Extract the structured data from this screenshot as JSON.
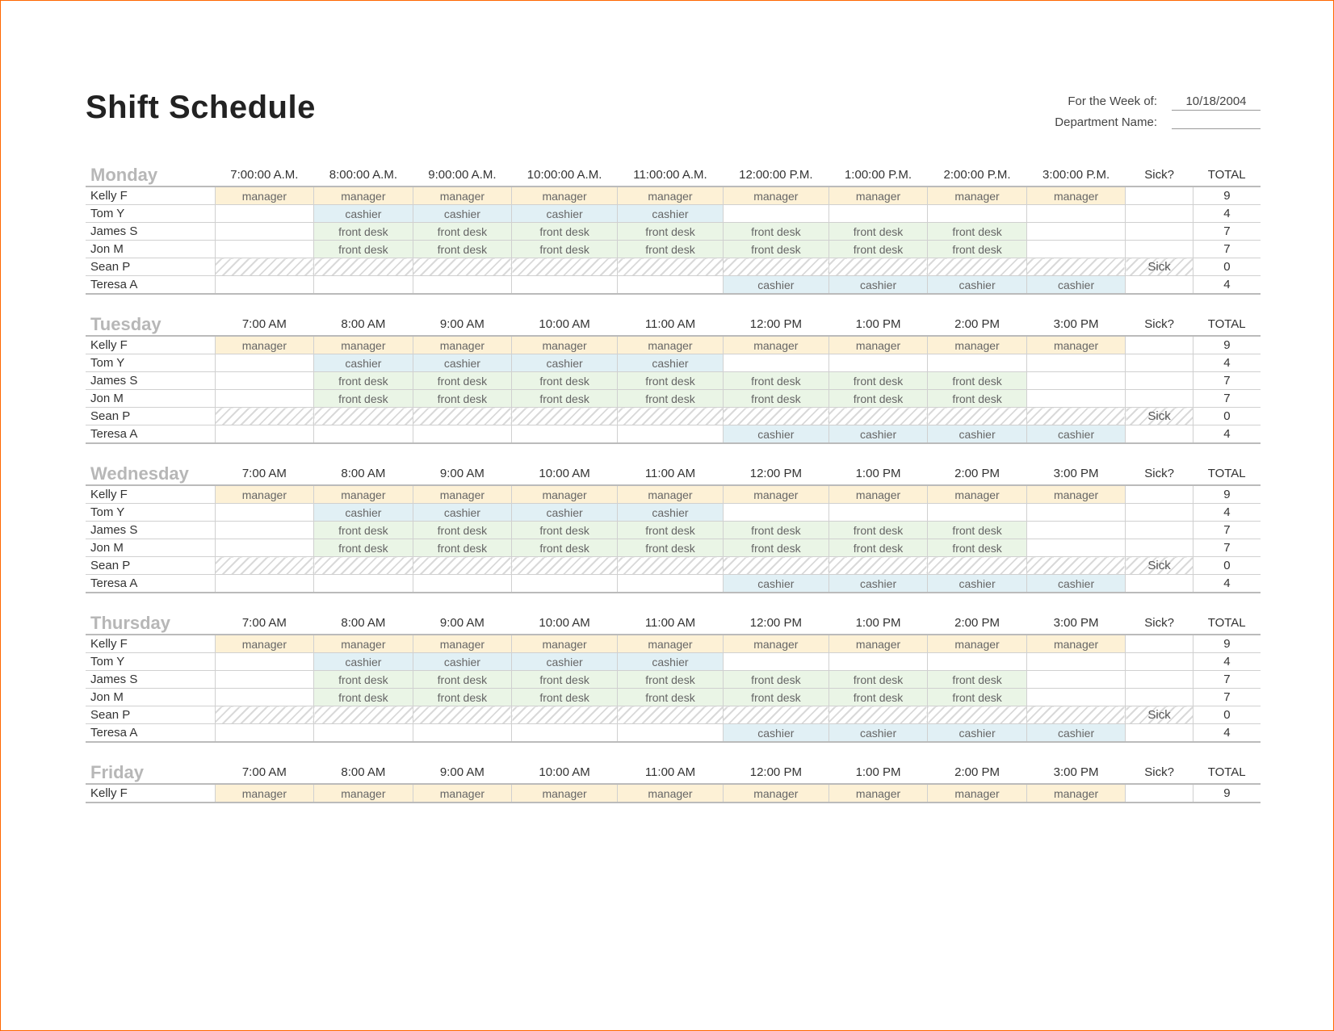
{
  "title": "Shift Schedule",
  "week_of_label": "For the Week of:",
  "week_of_value": "10/18/2004",
  "dept_label": "Department Name:",
  "dept_value": "",
  "roles": {
    "manager": {
      "label": "manager",
      "cls": "role-manager"
    },
    "cashier": {
      "label": "cashier",
      "cls": "role-cashier"
    },
    "frontdesk": {
      "label": "front desk",
      "cls": "role-frontdesk"
    }
  },
  "sick_header": "Sick?",
  "total_header": "TOTAL",
  "sick_label": "Sick",
  "days": [
    {
      "name": "Monday",
      "times": [
        "7:00:00 A.M.",
        "8:00:00 A.M.",
        "9:00:00 A.M.",
        "10:00:00 A.M.",
        "11:00:00 A.M.",
        "12:00:00 P.M.",
        "1:00:00 P.M.",
        "2:00:00 P.M.",
        "3:00:00 P.M."
      ],
      "rows": [
        {
          "name": "Kelly F",
          "cells": [
            "manager",
            "manager",
            "manager",
            "manager",
            "manager",
            "manager",
            "manager",
            "manager",
            "manager"
          ],
          "sick": "",
          "total": "9"
        },
        {
          "name": "Tom Y",
          "cells": [
            "",
            "cashier",
            "cashier",
            "cashier",
            "cashier",
            "",
            "",
            "",
            ""
          ],
          "sick": "",
          "total": "4"
        },
        {
          "name": "James S",
          "cells": [
            "",
            "frontdesk",
            "frontdesk",
            "frontdesk",
            "frontdesk",
            "frontdesk",
            "frontdesk",
            "frontdesk",
            ""
          ],
          "sick": "",
          "total": "7"
        },
        {
          "name": "Jon M",
          "cells": [
            "",
            "frontdesk",
            "frontdesk",
            "frontdesk",
            "frontdesk",
            "frontdesk",
            "frontdesk",
            "frontdesk",
            ""
          ],
          "sick": "",
          "total": "7"
        },
        {
          "name": "Sean P",
          "cells": [
            null,
            null,
            null,
            null,
            null,
            null,
            null,
            null,
            null
          ],
          "sick": "Sick",
          "total": "0"
        },
        {
          "name": "Teresa A",
          "cells": [
            "",
            "",
            "",
            "",
            "",
            "cashier",
            "cashier",
            "cashier",
            "cashier"
          ],
          "sick": "",
          "total": "4"
        }
      ]
    },
    {
      "name": "Tuesday",
      "times": [
        "7:00 AM",
        "8:00 AM",
        "9:00 AM",
        "10:00 AM",
        "11:00 AM",
        "12:00 PM",
        "1:00 PM",
        "2:00 PM",
        "3:00 PM"
      ],
      "rows": [
        {
          "name": "Kelly F",
          "cells": [
            "manager",
            "manager",
            "manager",
            "manager",
            "manager",
            "manager",
            "manager",
            "manager",
            "manager"
          ],
          "sick": "",
          "total": "9"
        },
        {
          "name": "Tom Y",
          "cells": [
            "",
            "cashier",
            "cashier",
            "cashier",
            "cashier",
            "",
            "",
            "",
            ""
          ],
          "sick": "",
          "total": "4"
        },
        {
          "name": "James S",
          "cells": [
            "",
            "frontdesk",
            "frontdesk",
            "frontdesk",
            "frontdesk",
            "frontdesk",
            "frontdesk",
            "frontdesk",
            ""
          ],
          "sick": "",
          "total": "7"
        },
        {
          "name": "Jon M",
          "cells": [
            "",
            "frontdesk",
            "frontdesk",
            "frontdesk",
            "frontdesk",
            "frontdesk",
            "frontdesk",
            "frontdesk",
            ""
          ],
          "sick": "",
          "total": "7"
        },
        {
          "name": "Sean P",
          "cells": [
            null,
            null,
            null,
            null,
            null,
            null,
            null,
            null,
            null
          ],
          "sick": "Sick",
          "total": "0"
        },
        {
          "name": "Teresa A",
          "cells": [
            "",
            "",
            "",
            "",
            "",
            "cashier",
            "cashier",
            "cashier",
            "cashier"
          ],
          "sick": "",
          "total": "4"
        }
      ]
    },
    {
      "name": "Wednesday",
      "times": [
        "7:00 AM",
        "8:00 AM",
        "9:00 AM",
        "10:00 AM",
        "11:00 AM",
        "12:00 PM",
        "1:00 PM",
        "2:00 PM",
        "3:00 PM"
      ],
      "rows": [
        {
          "name": "Kelly F",
          "cells": [
            "manager",
            "manager",
            "manager",
            "manager",
            "manager",
            "manager",
            "manager",
            "manager",
            "manager"
          ],
          "sick": "",
          "total": "9"
        },
        {
          "name": "Tom Y",
          "cells": [
            "",
            "cashier",
            "cashier",
            "cashier",
            "cashier",
            "",
            "",
            "",
            ""
          ],
          "sick": "",
          "total": "4"
        },
        {
          "name": "James S",
          "cells": [
            "",
            "frontdesk",
            "frontdesk",
            "frontdesk",
            "frontdesk",
            "frontdesk",
            "frontdesk",
            "frontdesk",
            ""
          ],
          "sick": "",
          "total": "7"
        },
        {
          "name": "Jon M",
          "cells": [
            "",
            "frontdesk",
            "frontdesk",
            "frontdesk",
            "frontdesk",
            "frontdesk",
            "frontdesk",
            "frontdesk",
            ""
          ],
          "sick": "",
          "total": "7"
        },
        {
          "name": "Sean P",
          "cells": [
            null,
            null,
            null,
            null,
            null,
            null,
            null,
            null,
            null
          ],
          "sick": "Sick",
          "total": "0"
        },
        {
          "name": "Teresa A",
          "cells": [
            "",
            "",
            "",
            "",
            "",
            "cashier",
            "cashier",
            "cashier",
            "cashier"
          ],
          "sick": "",
          "total": "4"
        }
      ]
    },
    {
      "name": "Thursday",
      "times": [
        "7:00 AM",
        "8:00 AM",
        "9:00 AM",
        "10:00 AM",
        "11:00 AM",
        "12:00 PM",
        "1:00 PM",
        "2:00 PM",
        "3:00 PM"
      ],
      "rows": [
        {
          "name": "Kelly F",
          "cells": [
            "manager",
            "manager",
            "manager",
            "manager",
            "manager",
            "manager",
            "manager",
            "manager",
            "manager"
          ],
          "sick": "",
          "total": "9"
        },
        {
          "name": "Tom Y",
          "cells": [
            "",
            "cashier",
            "cashier",
            "cashier",
            "cashier",
            "",
            "",
            "",
            ""
          ],
          "sick": "",
          "total": "4"
        },
        {
          "name": "James S",
          "cells": [
            "",
            "frontdesk",
            "frontdesk",
            "frontdesk",
            "frontdesk",
            "frontdesk",
            "frontdesk",
            "frontdesk",
            ""
          ],
          "sick": "",
          "total": "7"
        },
        {
          "name": "Jon M",
          "cells": [
            "",
            "frontdesk",
            "frontdesk",
            "frontdesk",
            "frontdesk",
            "frontdesk",
            "frontdesk",
            "frontdesk",
            ""
          ],
          "sick": "",
          "total": "7"
        },
        {
          "name": "Sean P",
          "cells": [
            null,
            null,
            null,
            null,
            null,
            null,
            null,
            null,
            null
          ],
          "sick": "Sick",
          "total": "0"
        },
        {
          "name": "Teresa A",
          "cells": [
            "",
            "",
            "",
            "",
            "",
            "cashier",
            "cashier",
            "cashier",
            "cashier"
          ],
          "sick": "",
          "total": "4"
        }
      ]
    },
    {
      "name": "Friday",
      "times": [
        "7:00 AM",
        "8:00 AM",
        "9:00 AM",
        "10:00 AM",
        "11:00 AM",
        "12:00 PM",
        "1:00 PM",
        "2:00 PM",
        "3:00 PM"
      ],
      "rows": [
        {
          "name": "Kelly F",
          "cells": [
            "manager",
            "manager",
            "manager",
            "manager",
            "manager",
            "manager",
            "manager",
            "manager",
            "manager"
          ],
          "sick": "",
          "total": "9"
        }
      ]
    }
  ]
}
